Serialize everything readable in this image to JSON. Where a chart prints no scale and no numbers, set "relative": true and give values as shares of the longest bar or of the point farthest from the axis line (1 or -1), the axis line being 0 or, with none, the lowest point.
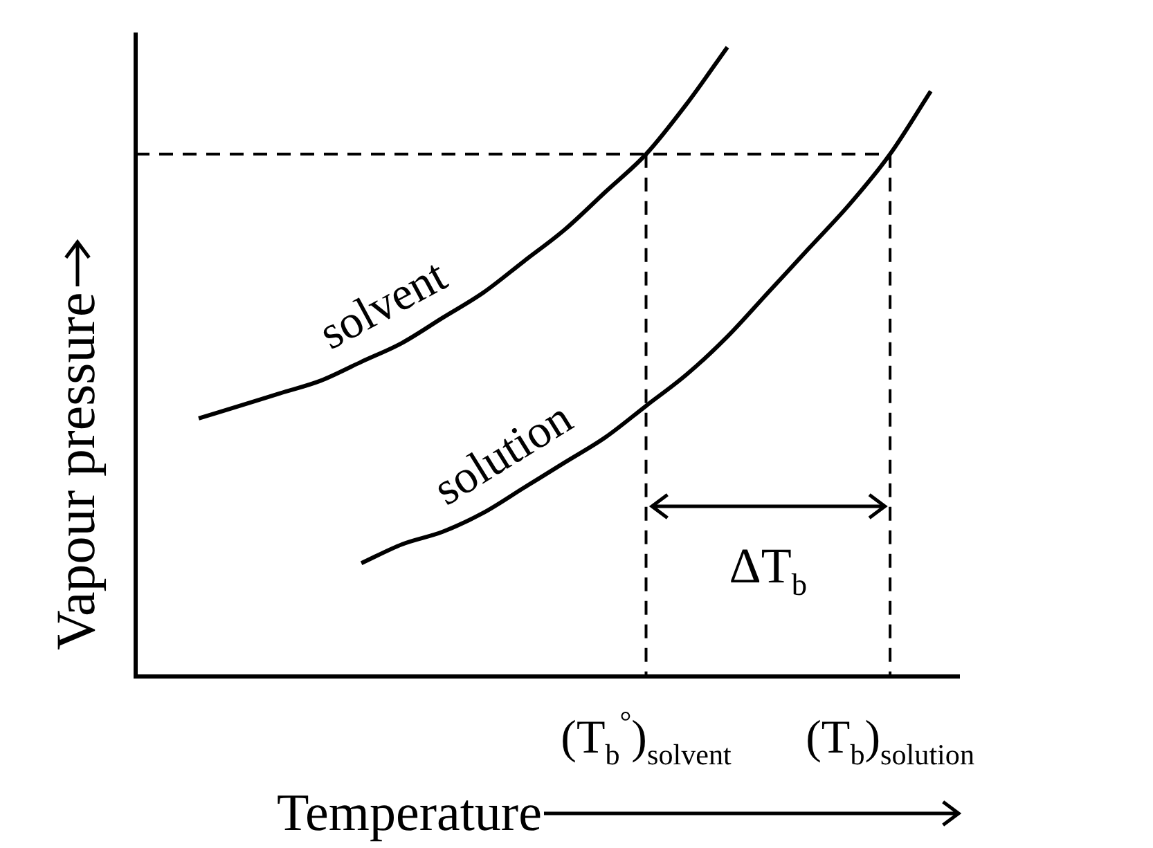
{
  "chart_data": {
    "type": "line",
    "relative": true,
    "xlabel": "Temperature",
    "ylabel": "Vapour pressure",
    "categories": [
      null,
      null,
      null,
      null,
      null,
      null,
      null,
      null,
      null,
      null,
      null,
      "(T$_{b}$$^{°}$)$_{solvent}$",
      null,
      null,
      null,
      null,
      null,
      "(T$_{b}$)$_{solution}$",
      null
    ],
    "series": [
      {
        "name": "solvent",
        "color": "#000000",
        "values": [
          0.41,
          0.43,
          0.45,
          0.47,
          0.5,
          0.53,
          0.57,
          0.61,
          0.66,
          0.71,
          0.77,
          0.83,
          0.91,
          1.0,
          null,
          null,
          null,
          null,
          null
        ]
      },
      {
        "name": "solution",
        "color": "#000000",
        "values": [
          null,
          null,
          null,
          null,
          0.18,
          0.21,
          0.23,
          0.26,
          0.3,
          0.34,
          0.38,
          0.43,
          0.48,
          0.54,
          0.61,
          0.68,
          0.75,
          0.83,
          0.93
        ]
      }
    ],
    "ref_lines": [
      {
        "axis": "y",
        "value": 0.83,
        "line_style": "dashed"
      },
      {
        "axis": "x",
        "value": "(T$_{b}$$^{°}$)$_{solvent}$",
        "line_style": "dashed"
      },
      {
        "axis": "x",
        "value": "(T$_{b}$)$_{solution}$",
        "line_style": "dashed"
      }
    ],
    "annotations": [
      "ΔT$_{b}$"
    ],
    "legend": false
  }
}
